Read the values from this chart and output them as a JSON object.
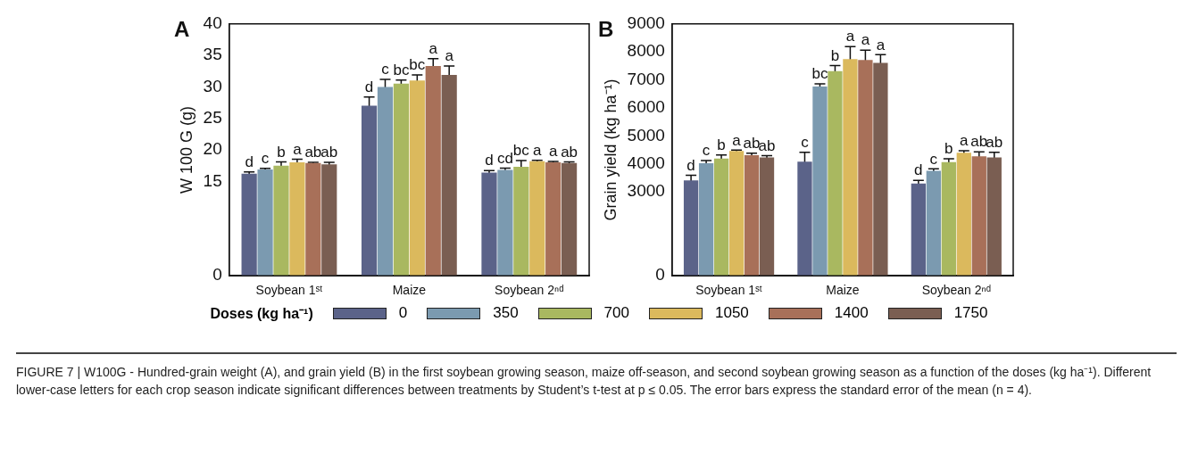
{
  "chart_data": [
    {
      "type": "bar",
      "title": "A",
      "ylabel": "W 100 G (g)",
      "legend_title": "Doses (kg ha⁻¹)",
      "legend": "bottom",
      "grid": false,
      "categories": [
        "Soybean 1ˢᵗ",
        "Maize",
        "Soybean 2ⁿᵈ"
      ],
      "ylim": [
        0,
        40
      ],
      "yticks": [
        0,
        15,
        20,
        25,
        30,
        35,
        40
      ],
      "series": [
        {
          "name": "0",
          "color": "#5b6389",
          "values": [
            16.2,
            27.0,
            16.4
          ],
          "errors": [
            0.3,
            1.4,
            0.3
          ],
          "value_labels": [
            "d",
            "d",
            "d"
          ]
        },
        {
          "name": "350",
          "color": "#7b9ab0",
          "values": [
            16.9,
            30.0,
            16.8
          ],
          "errors": [
            0.15,
            1.2,
            0.3
          ],
          "value_labels": [
            "c",
            "c",
            "cd"
          ]
        },
        {
          "name": "700",
          "color": "#a9b860",
          "values": [
            17.5,
            30.5,
            17.3
          ],
          "errors": [
            0.6,
            0.6,
            1.0
          ],
          "value_labels": [
            "b",
            "bc",
            "bc"
          ]
        },
        {
          "name": "1050",
          "color": "#dbb95d",
          "values": [
            18.0,
            31.0,
            18.2
          ],
          "errors": [
            0.5,
            0.9,
            0.15
          ],
          "value_labels": [
            "a",
            "bc",
            "a"
          ]
        },
        {
          "name": "1400",
          "color": "#a87059",
          "values": [
            17.9,
            33.3,
            18.0
          ],
          "errors": [
            0.1,
            1.2,
            0.15
          ],
          "value_labels": [
            "ab",
            "a",
            "a"
          ]
        },
        {
          "name": "1750",
          "color": "#7a5e52",
          "values": [
            17.7,
            31.9,
            17.9
          ],
          "errors": [
            0.3,
            1.4,
            0.2
          ],
          "value_labels": [
            "ab",
            "a",
            "ab"
          ]
        }
      ],
      "annotations": [
        "FIGURE 7 | W100G - Hundred-grain weight (A), and grain yield (B) in the first soybean growing season, maize off-season, and second soybean growing season as a function of the doses (kg ha⁻¹). Different lower-case letters for each crop season indicate significant differences between treatments by Student’s t-test at p ≤ 0.05. The error bars express the standard error of the mean (n = 4)."
      ]
    },
    {
      "type": "bar",
      "title": "B",
      "ylabel": "Grain yield (kg ha⁻¹)",
      "grid": false,
      "categories": [
        "Soybean 1ˢᵗ",
        "Maize",
        "Soybean 2ⁿᵈ"
      ],
      "ylim": [
        0,
        9000
      ],
      "yticks": [
        0,
        3000,
        4000,
        5000,
        6000,
        7000,
        8000,
        9000
      ],
      "series": [
        {
          "color": "#5b6389",
          "values": [
            3410,
            4080,
            3300
          ],
          "errors": [
            180,
            330,
            110
          ],
          "value_labels": [
            "d",
            "c",
            "d"
          ]
        },
        {
          "color": "#7b9ab0",
          "values": [
            4020,
            6760,
            3750
          ],
          "errors": [
            100,
            100,
            70
          ],
          "value_labels": [
            "c",
            "bc",
            "c"
          ]
        },
        {
          "color": "#a9b860",
          "values": [
            4190,
            7310,
            4060
          ],
          "errors": [
            130,
            200,
            120
          ],
          "value_labels": [
            "b",
            "b",
            "b"
          ]
        },
        {
          "color": "#dbb95d",
          "values": [
            4460,
            7740,
            4400
          ],
          "errors": [
            30,
            450,
            70
          ],
          "value_labels": [
            "a",
            "a",
            "a"
          ]
        },
        {
          "color": "#a87059",
          "values": [
            4310,
            7710,
            4270
          ],
          "errors": [
            70,
            350,
            160
          ],
          "value_labels": [
            "ab",
            "a",
            "ab"
          ]
        },
        {
          "color": "#7a5e52",
          "values": [
            4230,
            7610,
            4230
          ],
          "errors": [
            60,
            290,
            180
          ],
          "value_labels": [
            "ab",
            "a",
            "ab"
          ]
        }
      ]
    }
  ]
}
